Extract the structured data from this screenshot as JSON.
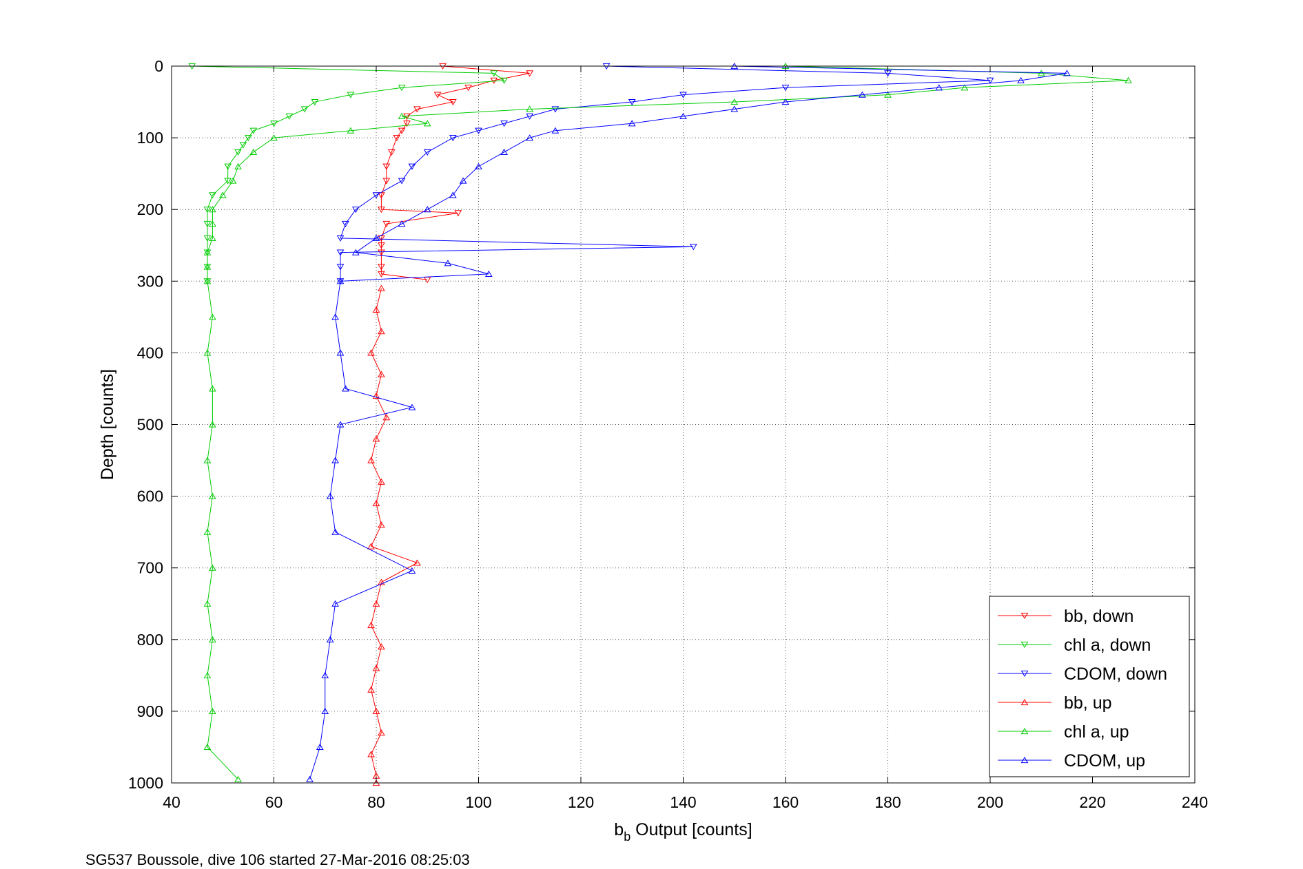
{
  "chart_data": {
    "type": "scatter",
    "title": "",
    "xlabel_main": "b",
    "xlabel_sub": "b",
    "xlabel_rest": " Output [counts]",
    "ylabel": "Depth [counts]",
    "xlim": [
      40,
      240
    ],
    "ylim": [
      0,
      1000
    ],
    "y_reversed": true,
    "xticks": [
      40,
      60,
      80,
      100,
      120,
      140,
      160,
      180,
      200,
      220,
      240
    ],
    "yticks": [
      0,
      100,
      200,
      300,
      400,
      500,
      600,
      700,
      800,
      900,
      1000
    ],
    "grid": true,
    "legend_position": "bottom-right",
    "caption": "SG537 Boussole, dive 106 started 27-Mar-2016 08:25:03",
    "series": [
      {
        "name": "bb, down",
        "color": "#ff0000",
        "marker": "triangle-down",
        "y": [
          0,
          10,
          20,
          30,
          40,
          50,
          60,
          70,
          80,
          90,
          100,
          120,
          140,
          160,
          180,
          200,
          205,
          220,
          240,
          250,
          260,
          280,
          290,
          298
        ],
        "x": [
          93,
          110,
          103,
          98,
          92,
          95,
          88,
          86,
          86,
          85,
          84,
          83,
          82,
          82,
          81,
          81,
          96,
          82,
          81,
          81,
          81,
          81,
          81,
          90
        ]
      },
      {
        "name": "chl a, down",
        "color": "#00cc00",
        "marker": "triangle-down",
        "y": [
          0,
          10,
          20,
          30,
          40,
          50,
          60,
          70,
          80,
          90,
          100,
          110,
          120,
          140,
          160,
          180,
          200,
          220,
          240,
          260,
          280,
          300
        ],
        "x": [
          44,
          103,
          105,
          85,
          75,
          68,
          66,
          63,
          60,
          56,
          55,
          54,
          53,
          51,
          51,
          48,
          47,
          47,
          47,
          47,
          47,
          47
        ]
      },
      {
        "name": "CDOM, down",
        "color": "#0000ff",
        "marker": "triangle-down",
        "y": [
          0,
          10,
          20,
          30,
          40,
          50,
          60,
          70,
          80,
          90,
          100,
          120,
          140,
          160,
          180,
          200,
          220,
          240,
          252,
          260,
          280,
          300
        ],
        "x": [
          125,
          180,
          200,
          160,
          140,
          130,
          115,
          110,
          105,
          100,
          95,
          90,
          87,
          85,
          80,
          76,
          74,
          73,
          142,
          73,
          73,
          73
        ]
      },
      {
        "name": "bb, up",
        "color": "#ff0000",
        "marker": "triangle-up",
        "y": [
          310,
          340,
          370,
          400,
          430,
          460,
          490,
          520,
          550,
          580,
          610,
          640,
          670,
          693,
          720,
          750,
          780,
          810,
          840,
          870,
          900,
          930,
          960,
          990,
          1000
        ],
        "x": [
          81,
          80,
          81,
          79,
          81,
          80,
          82,
          80,
          79,
          81,
          80,
          81,
          79,
          88,
          81,
          80,
          79,
          81,
          80,
          79,
          80,
          81,
          79,
          80,
          80
        ]
      },
      {
        "name": "chl a, up",
        "color": "#00cc00",
        "marker": "triangle-up",
        "y": [
          0,
          10,
          20,
          30,
          40,
          50,
          60,
          70,
          80,
          90,
          100,
          120,
          140,
          160,
          180,
          200,
          220,
          240,
          260,
          280,
          300,
          350,
          400,
          450,
          500,
          550,
          600,
          650,
          700,
          750,
          800,
          850,
          900,
          950,
          995
        ],
        "x": [
          160,
          210,
          227,
          195,
          180,
          150,
          110,
          85,
          90,
          75,
          60,
          56,
          53,
          52,
          50,
          48,
          48,
          48,
          47,
          47,
          47,
          48,
          47,
          48,
          48,
          47,
          48,
          47,
          48,
          47,
          48,
          47,
          48,
          47,
          53
        ]
      },
      {
        "name": "CDOM, up",
        "color": "#0000ff",
        "marker": "triangle-up",
        "y": [
          0,
          10,
          20,
          30,
          40,
          50,
          60,
          70,
          80,
          90,
          100,
          120,
          140,
          160,
          180,
          200,
          220,
          240,
          260,
          275,
          290,
          300,
          350,
          400,
          450,
          476,
          500,
          550,
          600,
          650,
          704,
          750,
          800,
          850,
          900,
          950,
          995
        ],
        "x": [
          150,
          215,
          206,
          190,
          175,
          160,
          150,
          140,
          130,
          115,
          110,
          105,
          100,
          97,
          95,
          90,
          85,
          80,
          76,
          94,
          102,
          73,
          72,
          73,
          74,
          87,
          73,
          72,
          71,
          72,
          87,
          72,
          71,
          70,
          70,
          69,
          67
        ]
      }
    ]
  }
}
